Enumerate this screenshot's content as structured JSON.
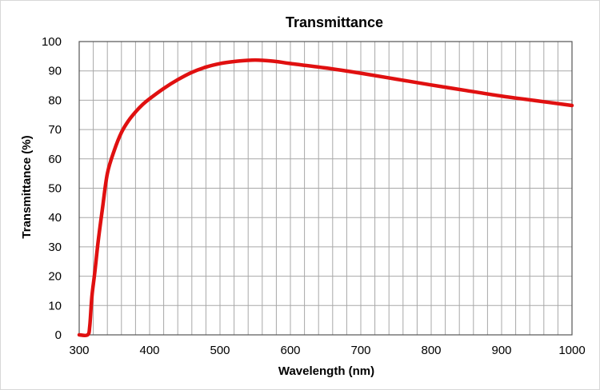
{
  "chart_data": {
    "type": "line",
    "title": "Transmittance",
    "xlabel": "Wavelength (nm)",
    "ylabel": "Transmittance (%)",
    "xlim": [
      300,
      1000
    ],
    "ylim": [
      0,
      100
    ],
    "x_ticks": [
      "300",
      "400",
      "500",
      "600",
      "700",
      "800",
      "900",
      "1000"
    ],
    "y_ticks": [
      "0",
      "10",
      "20",
      "30",
      "40",
      "50",
      "60",
      "70",
      "80",
      "90",
      "100"
    ],
    "grid": true,
    "legend": "none",
    "colors": {
      "series": "#e01010",
      "grid": "#a8a8a8",
      "axis": "#555555"
    },
    "series": [
      {
        "x": [
          300,
          312,
          315,
          318,
          322,
          327,
          333,
          340,
          350,
          360,
          370,
          380,
          390,
          400,
          420,
          440,
          460,
          480,
          500,
          520,
          540,
          550,
          560,
          580,
          600,
          650,
          700,
          750,
          800,
          850,
          900,
          950,
          1000
        ],
        "y": [
          0,
          0,
          3,
          13,
          21,
          32,
          43,
          55,
          63,
          69,
          73,
          76,
          78.5,
          80.5,
          84,
          87,
          89.5,
          91.3,
          92.5,
          93.2,
          93.6,
          93.7,
          93.6,
          93.2,
          92.5,
          91,
          89.2,
          87.2,
          85.2,
          83.3,
          81.4,
          79.8,
          78.2
        ]
      }
    ]
  }
}
